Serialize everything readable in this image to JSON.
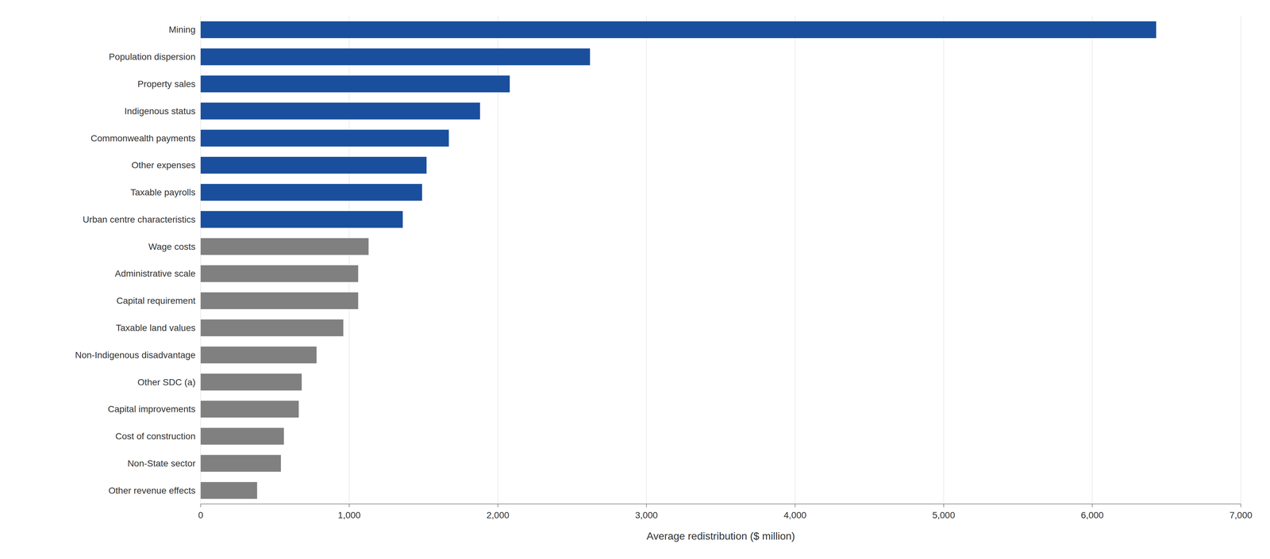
{
  "chart_data": {
    "type": "bar",
    "orientation": "horizontal",
    "categories": [
      "Mining",
      "Population dispersion",
      "Property sales",
      "Indigenous status",
      "Commonwealth payments",
      "Other expenses",
      "Taxable payrolls",
      "Urban centre characteristics",
      "Wage costs",
      "Administrative scale",
      "Capital requirement",
      "Taxable land values",
      "Non-Indigenous disadvantage",
      "Other SDC (a)",
      "Capital improvements",
      "Cost of construction",
      "Non-State sector",
      "Other revenue effects"
    ],
    "values": [
      6430,
      2620,
      2080,
      1880,
      1670,
      1520,
      1490,
      1360,
      1130,
      1060,
      1060,
      960,
      780,
      680,
      660,
      560,
      540,
      380
    ],
    "colors": [
      "#1a4f9e",
      "#1a4f9e",
      "#1a4f9e",
      "#1a4f9e",
      "#1a4f9e",
      "#1a4f9e",
      "#1a4f9e",
      "#1a4f9e",
      "#808080",
      "#808080",
      "#808080",
      "#808080",
      "#808080",
      "#808080",
      "#808080",
      "#808080",
      "#808080",
      "#808080"
    ],
    "xlabel": "Average redistribution ($ million)",
    "xlim": [
      0,
      7000
    ],
    "xticks": [
      0,
      {
        "value": 1000,
        "label": "1,000"
      },
      {
        "value": 2000,
        "label": "2,000"
      },
      {
        "value": 3000,
        "label": "3,000"
      },
      {
        "value": 4000,
        "label": "4,000"
      },
      {
        "value": 5000,
        "label": "5,000"
      },
      {
        "value": 6000,
        "label": "6,000"
      },
      {
        "value": 7000,
        "label": "7,000"
      }
    ],
    "grid": true
  }
}
